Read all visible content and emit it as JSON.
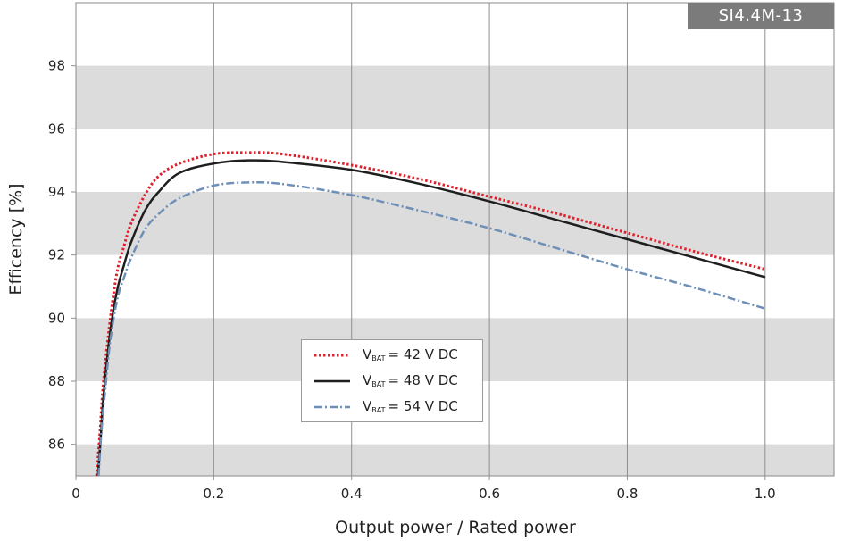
{
  "chart_data": {
    "type": "line",
    "title": "SI4.4M-13",
    "xlabel": "Output power / Rated power",
    "ylabel": "Efficency [%]",
    "xlim": [
      0,
      1.1
    ],
    "ylim": [
      85,
      100
    ],
    "x_ticks": [
      "0",
      "0.2",
      "0.4",
      "0.6",
      "0.8",
      "1.0"
    ],
    "y_ticks": [
      "86",
      "88",
      "90",
      "92",
      "94",
      "96",
      "98"
    ],
    "grid": "vertical lines with alternating grey horizontal bands",
    "legend_position": "lower-center",
    "series": [
      {
        "name": "V_BAT = 42 V DC",
        "legend": {
          "symbol": "V",
          "subscript": "BAT",
          "rest": "= 42 V DC"
        },
        "color": "#e0202c",
        "style": "dotted",
        "x": [
          0.03,
          0.035,
          0.04,
          0.05,
          0.06,
          0.07,
          0.08,
          0.1,
          0.12,
          0.15,
          0.2,
          0.25,
          0.3,
          0.4,
          0.5,
          0.6,
          0.7,
          0.8,
          0.9,
          1.0
        ],
        "y": [
          85,
          86.4,
          88.0,
          90.0,
          91.5,
          92.3,
          93.0,
          93.9,
          94.5,
          94.9,
          95.2,
          95.25,
          95.2,
          94.85,
          94.4,
          93.85,
          93.3,
          92.7,
          92.1,
          91.55
        ]
      },
      {
        "name": "V_BAT = 48 V DC",
        "legend": {
          "symbol": "V",
          "subscript": "BAT",
          "rest": "= 48 V DC"
        },
        "color": "#1e1e1e",
        "style": "solid",
        "x": [
          0.032,
          0.036,
          0.04,
          0.05,
          0.06,
          0.07,
          0.08,
          0.1,
          0.12,
          0.15,
          0.2,
          0.25,
          0.3,
          0.4,
          0.5,
          0.6,
          0.7,
          0.8,
          0.9,
          1.0
        ],
        "y": [
          85,
          86.2,
          87.5,
          89.6,
          90.9,
          91.7,
          92.4,
          93.4,
          94.0,
          94.6,
          94.9,
          95.0,
          94.95,
          94.7,
          94.25,
          93.7,
          93.1,
          92.5,
          91.9,
          91.3
        ]
      },
      {
        "name": "V_BAT = 54 V DC",
        "legend": {
          "symbol": "V",
          "subscript": "BAT",
          "rest": "= 54 V DC"
        },
        "color": "#6e8fb8",
        "style": "dashdot",
        "x": [
          0.033,
          0.037,
          0.042,
          0.05,
          0.06,
          0.07,
          0.08,
          0.1,
          0.12,
          0.15,
          0.2,
          0.25,
          0.3,
          0.4,
          0.5,
          0.6,
          0.7,
          0.8,
          0.9,
          1.0
        ],
        "y": [
          85,
          86.4,
          87.6,
          89.3,
          90.6,
          91.3,
          91.9,
          92.8,
          93.3,
          93.8,
          94.2,
          94.3,
          94.25,
          93.9,
          93.4,
          92.85,
          92.2,
          91.55,
          90.95,
          90.3
        ]
      }
    ]
  }
}
